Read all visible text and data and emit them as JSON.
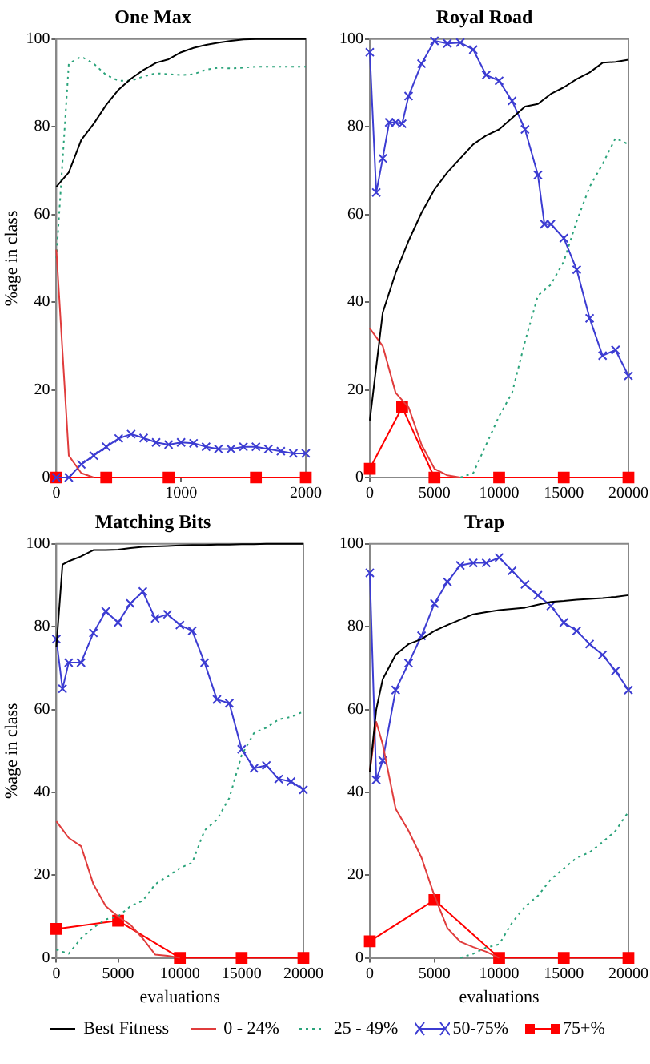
{
  "chart_data": [
    {
      "type": "line",
      "title": "One Max",
      "ylabel": "%age in class",
      "legend": "bottom",
      "xlim": [
        0,
        2000
      ],
      "xticks": [
        0,
        1000,
        2000
      ],
      "ylim": [
        0,
        100
      ],
      "yticks": [
        0,
        20,
        40,
        60,
        80,
        100
      ],
      "x": [
        0,
        100,
        200,
        300,
        400,
        500,
        600,
        700,
        800,
        900,
        1000,
        1100,
        1200,
        1300,
        1400,
        1500,
        1600,
        1700,
        1800,
        1900,
        2000
      ],
      "series": [
        {
          "name": "Best Fitness",
          "color": "#000000",
          "line_style": "solid",
          "values": [
            66.3,
            69.6,
            77,
            80.7,
            85,
            88.5,
            91,
            93,
            94.6,
            95.4,
            97,
            98,
            98.7,
            99.2,
            99.6,
            99.9,
            100,
            100,
            100,
            100,
            100
          ]
        },
        {
          "name": "0 - 24%",
          "color": "#e03c3c",
          "line_style": "solid",
          "values": [
            52,
            5,
            1,
            0,
            null,
            null,
            null,
            null,
            null,
            null,
            null,
            null,
            null,
            null,
            null,
            null,
            null,
            null,
            null,
            null,
            null
          ]
        },
        {
          "name": "25 - 49%",
          "color": "#2aa37a",
          "line_style": "dotted",
          "values": [
            50,
            94.4,
            96,
            94.4,
            91.8,
            90.5,
            90.5,
            91.5,
            92.2,
            92,
            91.8,
            92,
            93,
            93.5,
            93.3,
            93.5,
            93.7,
            93.7,
            93.7,
            93.7,
            93.7
          ]
        },
        {
          "name": "50-75%",
          "color": "#3c3cd2",
          "line_style": "solid",
          "marker": "cross",
          "values": [
            0,
            0,
            3,
            5,
            7,
            8.9,
            9.9,
            9,
            8,
            7.5,
            8,
            7.8,
            7,
            6.5,
            6.5,
            7,
            7,
            6.5,
            6,
            5.5,
            5.5
          ]
        },
        {
          "name": "75+%",
          "color": "#ff0000",
          "line_style": "solid",
          "marker": "square",
          "x": [
            0,
            400,
            900,
            1600,
            2000
          ],
          "values": [
            0,
            0,
            0,
            0,
            0
          ]
        }
      ]
    },
    {
      "type": "line",
      "title": "Royal Road",
      "xlim": [
        0,
        20000
      ],
      "xticks": [
        0,
        5000,
        10000,
        15000,
        20000
      ],
      "ylim": [
        0,
        100
      ],
      "yticks": [
        0,
        20,
        40,
        60,
        80,
        100
      ],
      "x": [
        0,
        1000,
        2000,
        3000,
        4000,
        5000,
        6000,
        7000,
        8000,
        9000,
        10000,
        11000,
        12000,
        13000,
        14000,
        15000,
        16000,
        17000,
        18000,
        19000,
        20000
      ],
      "series": [
        {
          "color": "#000000",
          "line_style": "solid",
          "values": [
            13,
            37.6,
            46.7,
            54,
            60.4,
            65.7,
            69.6,
            72.8,
            76,
            78,
            79.4,
            82,
            84.6,
            85.2,
            87.5,
            89,
            90.9,
            92.4,
            94.6,
            94.8,
            95.3
          ]
        },
        {
          "color": "#e03c3c",
          "line_style": "solid",
          "values": [
            34,
            30,
            19.3,
            16,
            7.5,
            2,
            0.5,
            0,
            null,
            null,
            null,
            null,
            null,
            null,
            null,
            null,
            null,
            null,
            null,
            null,
            null
          ]
        },
        {
          "color": "#2aa37a",
          "line_style": "dotted",
          "values": [
            null,
            null,
            null,
            null,
            null,
            null,
            null,
            0,
            1,
            7.5,
            14,
            19.3,
            31,
            41.5,
            44,
            49.3,
            58.5,
            66.3,
            71.5,
            77.4,
            76
          ]
        },
        {
          "color": "#3c3cd2",
          "line_style": "solid",
          "marker": "cross",
          "x": [
            0,
            500,
            1000,
            1500,
            2000,
            2500,
            3000,
            4000,
            5000,
            6000,
            7000,
            8000,
            9000,
            10000,
            11000,
            12000,
            13000,
            13500,
            14000,
            15000,
            16000,
            17000,
            18000,
            19000,
            20000
          ],
          "values": [
            97,
            65,
            72.8,
            81,
            81,
            80.7,
            87,
            94.4,
            99.6,
            99,
            99.2,
            97.6,
            91.8,
            90.5,
            85.9,
            79.4,
            69,
            57.8,
            57.8,
            54.6,
            47.4,
            36.3,
            27.8,
            29.1,
            23.2
          ]
        },
        {
          "color": "#ff0000",
          "line_style": "solid",
          "marker": "square",
          "x": [
            0,
            2500,
            5000,
            10000,
            15000,
            20000
          ],
          "values": [
            2,
            16,
            0,
            0,
            0,
            0
          ]
        }
      ]
    },
    {
      "type": "line",
      "title": "Matching Bits",
      "xlabel": "evaluations",
      "ylabel": "%age in class",
      "xlim": [
        0,
        20000
      ],
      "xticks": [
        0,
        5000,
        10000,
        15000,
        20000
      ],
      "ylim": [
        0,
        100
      ],
      "yticks": [
        0,
        20,
        40,
        60,
        80,
        100
      ],
      "x": [
        0,
        500,
        1000,
        2000,
        3000,
        4000,
        5000,
        6000,
        7000,
        8000,
        9000,
        10000,
        11000,
        12000,
        13000,
        14000,
        15000,
        16000,
        17000,
        18000,
        19000,
        20000
      ],
      "series": [
        {
          "color": "#000000",
          "line_style": "solid",
          "values": [
            75,
            95,
            95.8,
            97,
            98.5,
            98.5,
            98.6,
            99,
            99.3,
            99.4,
            99.5,
            99.6,
            99.7,
            99.7,
            99.8,
            99.8,
            99.9,
            99.9,
            100,
            100,
            100,
            100
          ]
        },
        {
          "color": "#e03c3c",
          "line_style": "solid",
          "values": [
            33,
            31,
            29,
            27,
            17.8,
            12.5,
            10,
            8,
            4.7,
            0.8,
            0.5,
            0,
            null,
            null,
            null,
            null,
            null,
            null,
            null,
            null,
            null,
            null
          ]
        },
        {
          "color": "#2aa37a",
          "line_style": "dotted",
          "values": [
            2,
            1.5,
            1,
            4.7,
            7.3,
            9.3,
            10,
            12.5,
            13.8,
            17.8,
            19.7,
            21.7,
            23,
            30.8,
            33.4,
            38.6,
            49,
            54.3,
            55.6,
            57.6,
            58.2,
            59.5
          ]
        },
        {
          "color": "#3c3cd2",
          "line_style": "solid",
          "marker": "cross",
          "values": [
            77,
            65,
            71.3,
            71.3,
            78.5,
            83.7,
            81,
            85.6,
            88.5,
            82,
            83,
            80.4,
            79,
            71.3,
            62.4,
            61.5,
            50.4,
            45.8,
            46.5,
            43.2,
            42.6,
            40.6
          ]
        },
        {
          "color": "#ff0000",
          "line_style": "solid",
          "marker": "square",
          "x": [
            0,
            5000,
            10000,
            15000,
            20000
          ],
          "values": [
            7,
            9,
            0,
            0,
            0
          ]
        }
      ]
    },
    {
      "type": "line",
      "title": "Trap",
      "xlabel": "evaluations",
      "xlim": [
        0,
        20000
      ],
      "xticks": [
        0,
        5000,
        10000,
        15000,
        20000
      ],
      "ylim": [
        0,
        100
      ],
      "yticks": [
        0,
        20,
        40,
        60,
        80,
        100
      ],
      "x": [
        0,
        500,
        1000,
        2000,
        3000,
        4000,
        5000,
        6000,
        7000,
        8000,
        9000,
        10000,
        11000,
        12000,
        13000,
        14000,
        15000,
        16000,
        17000,
        18000,
        19000,
        20000
      ],
      "series": [
        {
          "color": "#000000",
          "line_style": "solid",
          "values": [
            45,
            60,
            67.3,
            73.2,
            75.8,
            77,
            79,
            80.4,
            81.7,
            83,
            83.5,
            84,
            84.3,
            84.6,
            85.3,
            86,
            86.2,
            86.5,
            86.7,
            86.9,
            87.2,
            87.6
          ]
        },
        {
          "color": "#e03c3c",
          "line_style": "solid",
          "values": [
            45,
            57,
            51.6,
            36,
            30.7,
            24.2,
            15,
            7.2,
            3.9,
            2.6,
            1.5,
            0,
            null,
            null,
            null,
            null,
            null,
            null,
            null,
            null,
            null,
            null
          ]
        },
        {
          "color": "#2aa37a",
          "line_style": "dotted",
          "values": [
            null,
            null,
            null,
            null,
            null,
            null,
            null,
            null,
            0,
            1,
            2.5,
            3.3,
            8.5,
            12.4,
            15,
            19,
            21.6,
            24.2,
            25.5,
            28,
            30.7,
            35.3
          ]
        },
        {
          "color": "#3c3cd2",
          "line_style": "solid",
          "marker": "cross",
          "values": [
            93,
            43,
            47.7,
            64.7,
            71.2,
            77.8,
            85.6,
            90.8,
            94.8,
            95.4,
            95.4,
            96.7,
            93.5,
            90.2,
            87.6,
            85,
            81,
            79,
            75.8,
            73.2,
            69.3,
            64.7
          ]
        },
        {
          "color": "#ff0000",
          "line_style": "solid",
          "marker": "square",
          "x": [
            0,
            5000,
            10000,
            15000,
            20000
          ],
          "values": [
            4,
            14,
            0,
            0,
            0
          ]
        }
      ]
    }
  ]
}
